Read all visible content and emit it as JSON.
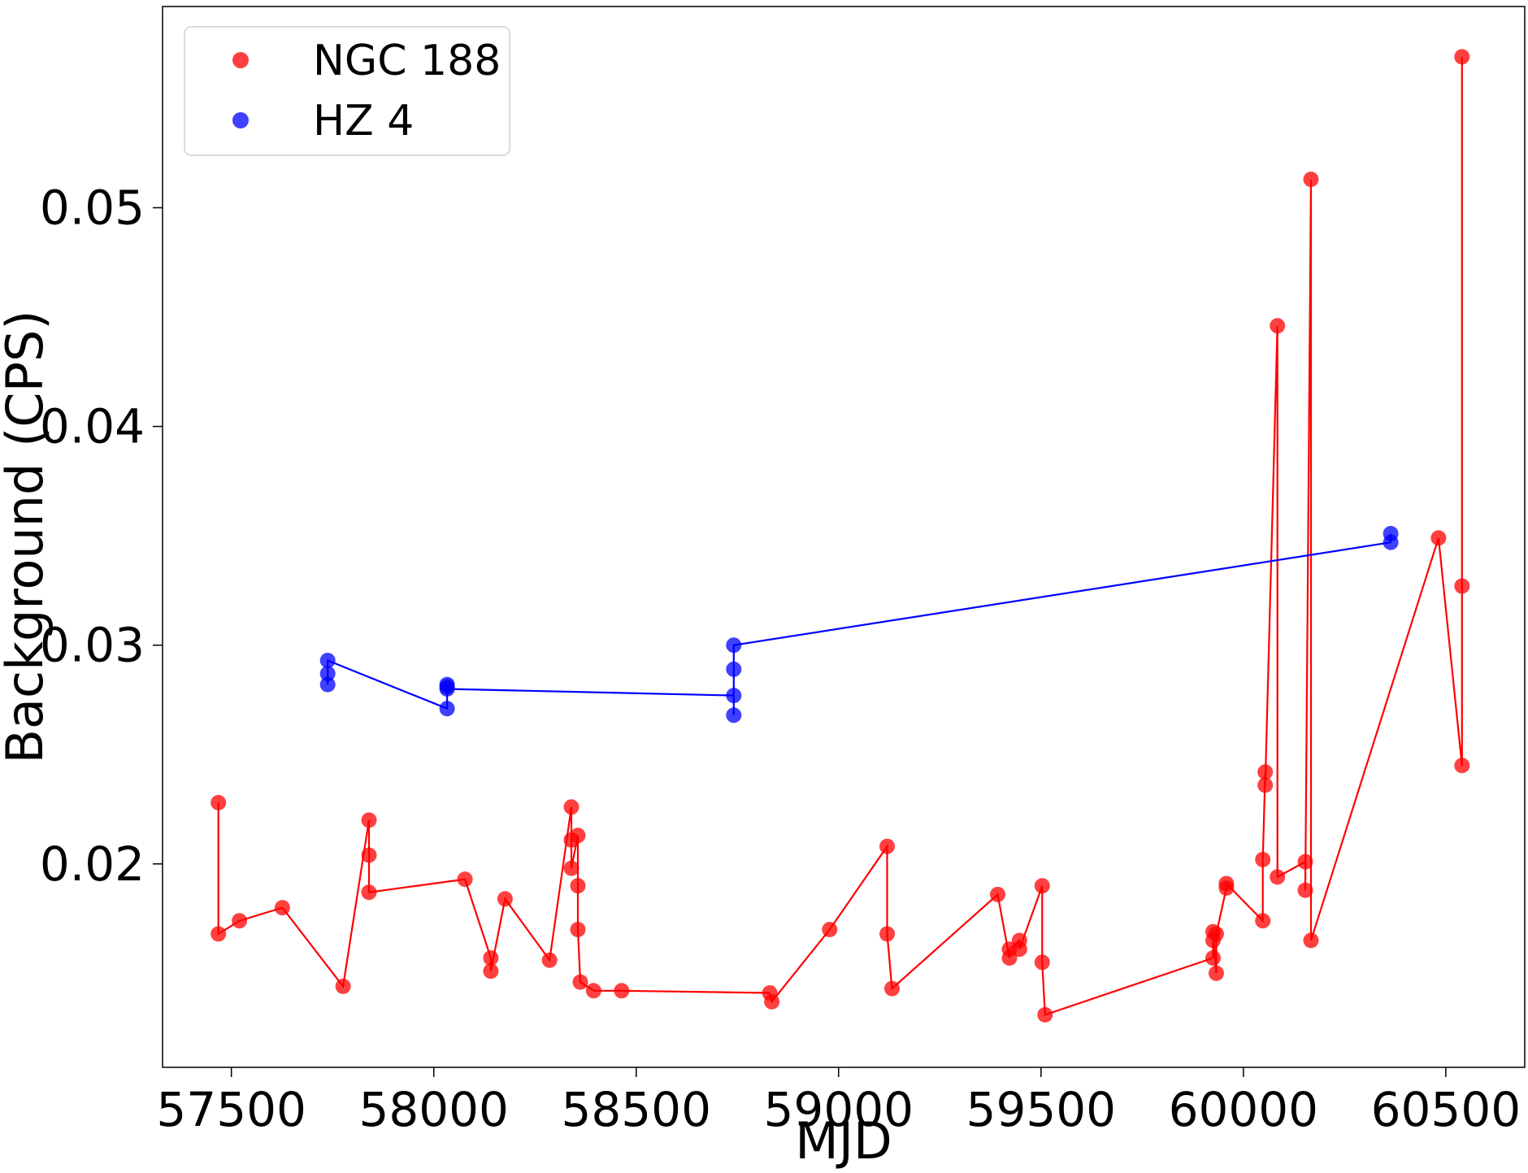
{
  "chart_data": {
    "type": "line",
    "title": "",
    "xlabel": "MJD",
    "ylabel": "Background (CPS)",
    "xlim": [
      57330,
      60695
    ],
    "ylim": [
      0.0107,
      0.0592
    ],
    "x_ticks": [
      57500,
      58000,
      58500,
      59000,
      59500,
      60000,
      60500
    ],
    "x_tick_labels": [
      "57500",
      "58000",
      "58500",
      "59000",
      "59500",
      "60000",
      "60500"
    ],
    "y_ticks": [
      0.02,
      0.03,
      0.04,
      0.05
    ],
    "y_tick_labels": [
      "0.02",
      "0.03",
      "0.04",
      "0.05"
    ],
    "grid": false,
    "legend_position": "top-left",
    "markers": "filled circles, semi-transparent",
    "series": [
      {
        "name": "NGC 188",
        "color": "#ff0000",
        "points": [
          [
            57468,
            0.0228
          ],
          [
            57468,
            0.0168
          ],
          [
            57520,
            0.0174
          ],
          [
            57626,
            0.018
          ],
          [
            57776,
            0.0144
          ],
          [
            57840,
            0.022
          ],
          [
            57840,
            0.0204
          ],
          [
            57840,
            0.0187
          ],
          [
            58077,
            0.0193
          ],
          [
            58141,
            0.0157
          ],
          [
            58141,
            0.0151
          ],
          [
            58176,
            0.0184
          ],
          [
            58286,
            0.0156
          ],
          [
            58340,
            0.0226
          ],
          [
            58340,
            0.0211
          ],
          [
            58340,
            0.0198
          ],
          [
            58356,
            0.0213
          ],
          [
            58356,
            0.019
          ],
          [
            58356,
            0.017
          ],
          [
            58362,
            0.0146
          ],
          [
            58395,
            0.0142
          ],
          [
            58464,
            0.0142
          ],
          [
            58830,
            0.0141
          ],
          [
            58835,
            0.0137
          ],
          [
            58978,
            0.017
          ],
          [
            59120,
            0.0208
          ],
          [
            59120,
            0.0168
          ],
          [
            59132,
            0.0143
          ],
          [
            59393,
            0.0186
          ],
          [
            59422,
            0.0157
          ],
          [
            59422,
            0.0161
          ],
          [
            59447,
            0.0165
          ],
          [
            59447,
            0.0161
          ],
          [
            59503,
            0.019
          ],
          [
            59503,
            0.0155
          ],
          [
            59510,
            0.0131
          ],
          [
            59925,
            0.0157
          ],
          [
            59925,
            0.0165
          ],
          [
            59925,
            0.0169
          ],
          [
            59933,
            0.015
          ],
          [
            59933,
            0.0168
          ],
          [
            59958,
            0.0189
          ],
          [
            59958,
            0.0191
          ],
          [
            60048,
            0.0174
          ],
          [
            60048,
            0.0202
          ],
          [
            60054,
            0.0242
          ],
          [
            60054,
            0.0236
          ],
          [
            60084,
            0.0446
          ],
          [
            60084,
            0.0194
          ],
          [
            60153,
            0.0201
          ],
          [
            60153,
            0.0188
          ],
          [
            60167,
            0.0513
          ],
          [
            60167,
            0.0165
          ],
          [
            60482,
            0.0349
          ],
          [
            60540,
            0.0245
          ],
          [
            60540,
            0.0327
          ],
          [
            60540,
            0.0569
          ]
        ]
      },
      {
        "name": "HZ 4",
        "color": "#0000ff",
        "points": [
          [
            57738,
            0.0282
          ],
          [
            57738,
            0.0287
          ],
          [
            57738,
            0.0293
          ],
          [
            58033,
            0.0271
          ],
          [
            58033,
            0.0281
          ],
          [
            58033,
            0.0282
          ],
          [
            58033,
            0.028
          ],
          [
            58741,
            0.0277
          ],
          [
            58741,
            0.0268
          ],
          [
            58741,
            0.0289
          ],
          [
            58741,
            0.03
          ],
          [
            60364,
            0.0347
          ],
          [
            60364,
            0.0351
          ]
        ]
      }
    ]
  }
}
